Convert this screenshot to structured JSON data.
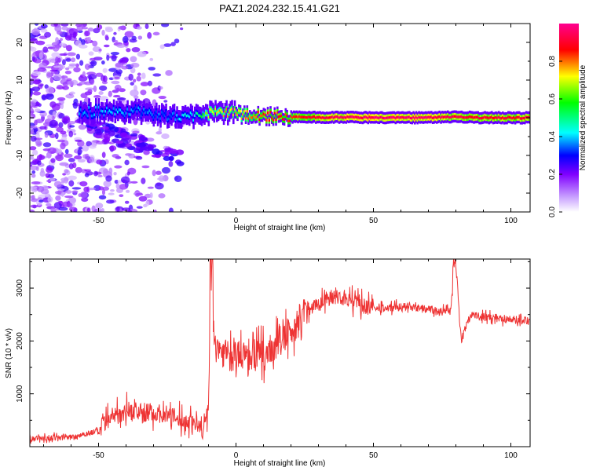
{
  "title": "PAZ1.2024.232.15.41.G21",
  "chart_data": [
    {
      "type": "heatmap",
      "xlabel": "Height of straight line (km)",
      "ylabel": "Frequency (Hz)",
      "xlim": [
        -75,
        107
      ],
      "ylim": [
        -25,
        25
      ],
      "xticks": [
        -50,
        0,
        50,
        100
      ],
      "yticks": [
        -20,
        -10,
        0,
        10,
        20
      ],
      "colorbar": {
        "label": "Normalized spectral amplitude",
        "range": [
          0,
          1
        ],
        "ticks": [
          "0.0",
          "0.2",
          "0.4",
          "0.6",
          "0.8"
        ],
        "colors": [
          "#ffffff",
          "#8000ff",
          "#0000ff",
          "#00ffff",
          "#00ff00",
          "#ffff00",
          "#ff0000",
          "#ff00a0"
        ]
      },
      "ridge": {
        "x": [
          -55,
          -45,
          -35,
          -25,
          -15,
          -10,
          -5,
          0,
          10,
          20,
          30,
          40,
          50,
          60,
          70,
          80,
          90,
          100,
          107
        ],
        "freq": [
          1.5,
          2.0,
          1.5,
          0.5,
          0.5,
          1.0,
          1.5,
          1.0,
          0.5,
          0.2,
          0.1,
          0.1,
          0.0,
          0.0,
          0.0,
          0.3,
          0.0,
          0.0,
          0.0
        ],
        "amplitude": [
          0.35,
          0.4,
          0.35,
          0.35,
          0.45,
          0.7,
          0.75,
          0.75,
          0.85,
          0.85,
          0.9,
          0.95,
          0.95,
          0.95,
          0.95,
          0.9,
          0.9,
          0.9,
          0.9
        ]
      }
    },
    {
      "type": "line",
      "xlabel": "Height of straight line (km)",
      "ylabel": "SNR (10 * v/v)",
      "xlim": [
        -75,
        107
      ],
      "ylim": [
        0,
        3550
      ],
      "xticks": [
        -50,
        0,
        50,
        100
      ],
      "yticks": [
        1000,
        2000,
        3000
      ],
      "color": "#ee3333",
      "series": [
        {
          "x": [
            -75,
            -60,
            -50,
            -45,
            -40,
            -35,
            -30,
            -25,
            -20,
            -15,
            -12,
            -10,
            -9,
            -8,
            -5,
            -2,
            0,
            5,
            10,
            15,
            20,
            25,
            30,
            35,
            40,
            45,
            50,
            60,
            70,
            75,
            78,
            80,
            82,
            85,
            90,
            95,
            100,
            107
          ],
          "y": [
            150,
            180,
            300,
            550,
            700,
            650,
            650,
            600,
            500,
            450,
            300,
            700,
            3450,
            1900,
            1800,
            1700,
            1700,
            1800,
            1700,
            1950,
            2150,
            2600,
            2700,
            2850,
            2800,
            2700,
            2600,
            2650,
            2600,
            2550,
            2550,
            3450,
            2000,
            2500,
            2450,
            2450,
            2400,
            2400
          ]
        }
      ]
    }
  ]
}
